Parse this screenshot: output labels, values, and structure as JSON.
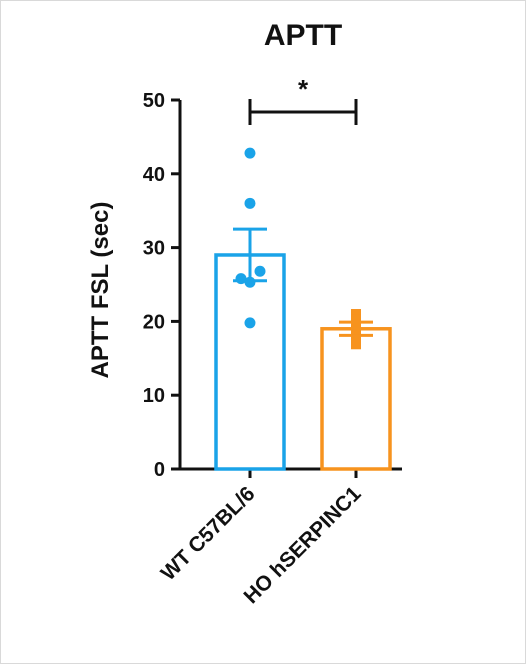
{
  "chart_data": {
    "type": "bar",
    "title": "APTT",
    "xlabel": "",
    "ylabel": "APTT FSL (sec)",
    "ylim": [
      0,
      50
    ],
    "yticks": [
      0,
      10,
      20,
      30,
      40,
      50
    ],
    "categories": [
      "WT C57BL/6",
      "HO hSERPINC1"
    ],
    "series": [
      {
        "values": [
          29.0,
          19.0
        ],
        "sem": [
          3.5,
          0.9
        ],
        "colors": [
          "#1aa3e8",
          "#f7931e"
        ],
        "points": [
          [
            42.8,
            36.0,
            26.8,
            25.8,
            25.3,
            19.8
          ],
          [
            21.0,
            20.2,
            19.4,
            18.9,
            17.6,
            16.9
          ]
        ]
      }
    ],
    "annotations": [
      {
        "type": "significance",
        "between": [
          "WT C57BL/6",
          "HO hSERPINC1"
        ],
        "label": "*"
      }
    ],
    "grid": false,
    "legend": "none"
  }
}
